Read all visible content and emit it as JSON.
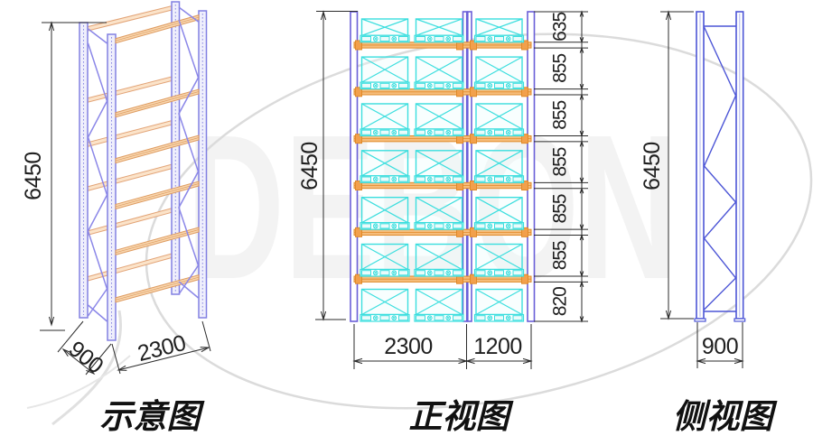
{
  "watermark": {
    "text": "DEBON"
  },
  "views": {
    "schematic": {
      "caption": "示意图",
      "dims": {
        "height": "6450",
        "depth": "900",
        "width": "2300"
      }
    },
    "front": {
      "caption": "正视图",
      "dims": {
        "height": "6450",
        "bays": [
          "2300",
          "1200"
        ],
        "levels": [
          "635",
          "855",
          "855",
          "855",
          "855",
          "855",
          "820"
        ]
      }
    },
    "side": {
      "caption": "侧视图",
      "dims": {
        "height": "6450",
        "width": "900"
      }
    }
  },
  "colors": {
    "upright": "#6A5FD8",
    "beam": "#F6BD7C",
    "beam_edge": "#E08A28",
    "beam_connector": "#F2A04C",
    "pallet": "#3BDEDE",
    "pallet_fill": "#EAFBFB",
    "frame_blue": "#4C55D6",
    "schematic_upright": "#8280E2",
    "schematic_upright_fill": "#EFEFFC",
    "schematic_beam_fill": "#F8D7B0",
    "schematic_beam_edge": "#DE9A5E",
    "dimension": "#2B2B2B",
    "watermark_line": "#DBDBDB"
  }
}
